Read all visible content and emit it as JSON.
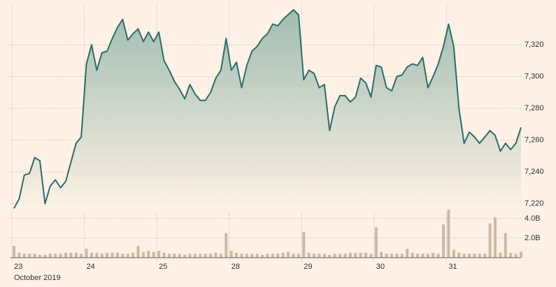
{
  "chart_data": [
    {
      "type": "area",
      "color": "#2a6e6c",
      "x": [
        0,
        1,
        2,
        3,
        4,
        5,
        6,
        7,
        8,
        9,
        10,
        11,
        12,
        13,
        14,
        15,
        16,
        17,
        18,
        19,
        20,
        21,
        22,
        23,
        24,
        25,
        26,
        27,
        28,
        29,
        30,
        31,
        32,
        33,
        34,
        35,
        36,
        37,
        38,
        39,
        40,
        41,
        42,
        43,
        44,
        45,
        46,
        47,
        48,
        49,
        50,
        51,
        52,
        53,
        54,
        55,
        56,
        57,
        58,
        59,
        60,
        61,
        62,
        63,
        64,
        65,
        66,
        67,
        68,
        69,
        70,
        71,
        72,
        73,
        74,
        75,
        76,
        77,
        78,
        79,
        80,
        81,
        82,
        83,
        84,
        85,
        86,
        87,
        88,
        89,
        90,
        91,
        92,
        93,
        94,
        95,
        96,
        97,
        98
      ],
      "values": [
        7217,
        7223,
        7238,
        7239,
        7249,
        7247,
        7220,
        7231,
        7235,
        7230,
        7234,
        7246,
        7258,
        7262,
        7308,
        7320,
        7304,
        7315,
        7316,
        7324,
        7331,
        7336,
        7323,
        7327,
        7330,
        7322,
        7328,
        7322,
        7328,
        7310,
        7304,
        7297,
        7292,
        7286,
        7295,
        7289,
        7285,
        7285,
        7290,
        7299,
        7304,
        7324,
        7304,
        7309,
        7293,
        7307,
        7316,
        7319,
        7324,
        7327,
        7333,
        7332,
        7336,
        7339,
        7342,
        7339,
        7298,
        7304,
        7302,
        7293,
        7295,
        7266,
        7281,
        7288,
        7288,
        7284,
        7287,
        7299,
        7296,
        7287,
        7307,
        7306,
        7293,
        7291,
        7300,
        7301,
        7306,
        7308,
        7307,
        7312,
        7293,
        7300,
        7308,
        7319,
        7333,
        7319,
        7280,
        7258,
        7265,
        7262,
        7258,
        7262,
        7266,
        7263,
        7253,
        7258,
        7254,
        7258,
        7268
      ],
      "xlim": [
        0,
        98
      ],
      "ylim": [
        7215,
        7346
      ],
      "yticks": [
        {
          "value": 7220,
          "label": "7,220"
        },
        {
          "value": 7240,
          "label": "7,240"
        },
        {
          "value": 7260,
          "label": "7,260"
        },
        {
          "value": 7280,
          "label": "7,280"
        },
        {
          "value": 7300,
          "label": "7,300"
        },
        {
          "value": 7320,
          "label": "7,320"
        }
      ],
      "grid": true
    },
    {
      "type": "bar",
      "color": "#cdb8a5",
      "x": [
        0,
        1,
        2,
        3,
        4,
        5,
        6,
        7,
        8,
        9,
        10,
        11,
        12,
        13,
        14,
        15,
        16,
        17,
        18,
        19,
        20,
        21,
        22,
        23,
        24,
        25,
        26,
        27,
        28,
        29,
        30,
        31,
        32,
        33,
        34,
        35,
        36,
        37,
        38,
        39,
        40,
        41,
        42,
        43,
        44,
        45,
        46,
        47,
        48,
        49,
        50,
        51,
        52,
        53,
        54,
        55,
        56,
        57,
        58,
        59,
        60,
        61,
        62,
        63,
        64,
        65,
        66,
        67,
        68,
        69,
        70,
        71,
        72,
        73,
        74,
        75,
        76,
        77,
        78,
        79,
        80,
        81,
        82,
        83,
        84,
        85,
        86,
        87,
        88,
        89,
        90,
        91,
        92,
        93,
        94,
        95,
        96,
        97,
        98
      ],
      "values": [
        1.2,
        0.5,
        0.4,
        0.4,
        0.4,
        0.3,
        0.3,
        0.4,
        0.4,
        0.4,
        0.5,
        0.5,
        0.5,
        0.4,
        0.9,
        0.5,
        0.5,
        0.4,
        0.5,
        0.5,
        0.5,
        0.4,
        0.4,
        0.5,
        1.2,
        0.6,
        0.7,
        0.6,
        0.7,
        0.5,
        0.4,
        0.4,
        0.4,
        0.3,
        0.4,
        0.4,
        0.4,
        0.4,
        0.4,
        0.5,
        0.4,
        2.5,
        0.7,
        0.5,
        0.4,
        0.4,
        0.4,
        0.4,
        0.3,
        0.4,
        0.4,
        0.4,
        0.5,
        0.6,
        0.4,
        0.4,
        2.6,
        0.5,
        0.4,
        0.4,
        0.4,
        0.3,
        0.4,
        0.4,
        0.4,
        0.5,
        0.5,
        0.5,
        0.5,
        0.4,
        3.1,
        0.6,
        0.4,
        0.4,
        0.4,
        0.4,
        0.9,
        0.5,
        0.4,
        0.4,
        0.4,
        0.5,
        0.4,
        3.4,
        4.9,
        0.8,
        0.5,
        0.4,
        0.4,
        0.4,
        0.4,
        0.4,
        3.5,
        4.1,
        0.5,
        2.5,
        0.5,
        0.4,
        0.6
      ],
      "xlim": [
        0,
        98
      ],
      "ylim": [
        0,
        5.2
      ],
      "yticks": [
        {
          "value": 2,
          "label": "2.0B"
        },
        {
          "value": 4,
          "label": "4.0B"
        }
      ],
      "xticks": [
        {
          "value": 0,
          "label": "23"
        },
        {
          "value": 14,
          "label": "24"
        },
        {
          "value": 28,
          "label": "25"
        },
        {
          "value": 42,
          "label": "28"
        },
        {
          "value": 56,
          "label": "29"
        },
        {
          "value": 70,
          "label": "30"
        },
        {
          "value": 84,
          "label": "31"
        }
      ],
      "xlabel": "October 2019",
      "grid": true
    }
  ]
}
